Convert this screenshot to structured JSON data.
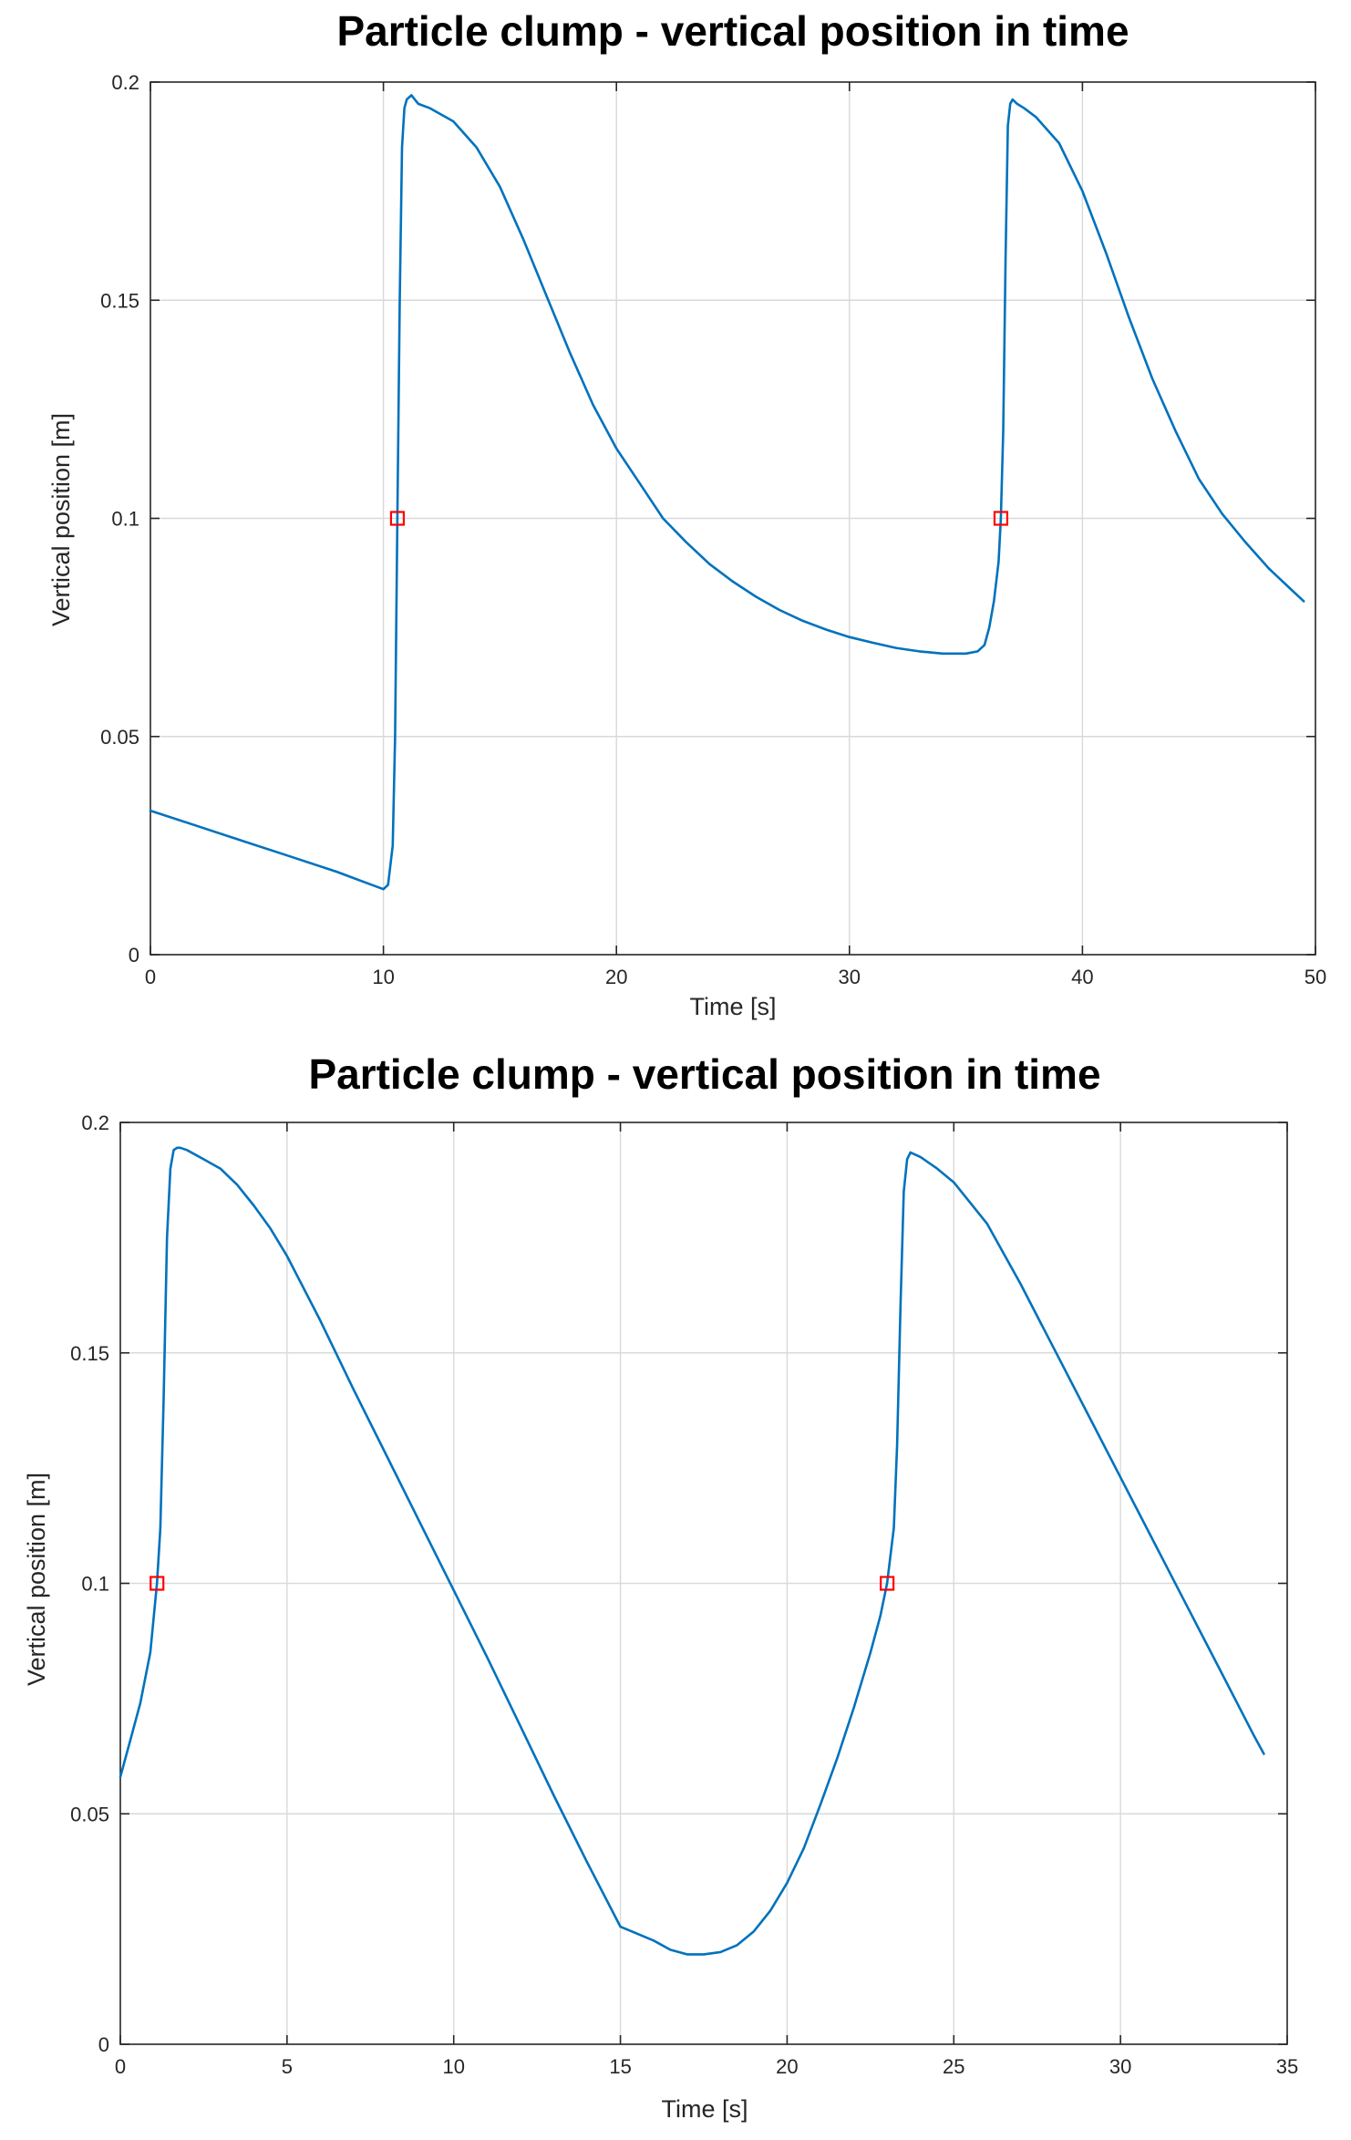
{
  "colors": {
    "line": "#0072BD",
    "marker": "#FF0000",
    "text": "#262626",
    "grid": "#D9D9D9",
    "title": "#000000"
  },
  "chart_data": [
    {
      "type": "line",
      "title": "Particle clump - vertical position in time",
      "xlabel": "Time [s]",
      "ylabel": "Vertical position [m]",
      "xlim": [
        0,
        50
      ],
      "ylim": [
        0,
        0.2
      ],
      "grid": true,
      "xticks": [
        0,
        10,
        20,
        30,
        40,
        50
      ],
      "xtick_labels": [
        "0",
        "10",
        "20",
        "30",
        "40",
        "50"
      ],
      "yticks": [
        0,
        0.05,
        0.1,
        0.15,
        0.2
      ],
      "ytick_labels": [
        "0",
        "0.05",
        "0.1",
        "0.15",
        "0.2"
      ],
      "series": [
        {
          "name": "position",
          "x": [
            0,
            2,
            4,
            6,
            8,
            9,
            10,
            10.2,
            10.4,
            10.5,
            10.6,
            10.7,
            10.8,
            10.9,
            11,
            11.2,
            11.5,
            12,
            13,
            14,
            15,
            16,
            17,
            18,
            19,
            20,
            21,
            22,
            23,
            24,
            25,
            26,
            27,
            28,
            29,
            30,
            31,
            32,
            33,
            34,
            35,
            35.5,
            35.8,
            36,
            36.2,
            36.4,
            36.5,
            36.6,
            36.7,
            36.8,
            36.9,
            37,
            37.2,
            37.5,
            38,
            39,
            40,
            41,
            42,
            43,
            44,
            45,
            46,
            47,
            48,
            49,
            49.5
          ],
          "y": [
            0.033,
            0.0295,
            0.026,
            0.0225,
            0.019,
            0.017,
            0.015,
            0.016,
            0.025,
            0.05,
            0.1,
            0.15,
            0.185,
            0.194,
            0.196,
            0.197,
            0.195,
            0.194,
            0.191,
            0.185,
            0.176,
            0.164,
            0.151,
            0.138,
            0.126,
            0.116,
            0.108,
            0.1,
            0.0945,
            0.0895,
            0.0855,
            0.082,
            0.079,
            0.0765,
            0.0745,
            0.0728,
            0.0715,
            0.0703,
            0.0695,
            0.069,
            0.069,
            0.0695,
            0.071,
            0.075,
            0.081,
            0.09,
            0.1,
            0.12,
            0.16,
            0.19,
            0.195,
            0.196,
            0.195,
            0.194,
            0.192,
            0.186,
            0.175,
            0.161,
            0.146,
            0.132,
            0.12,
            0.109,
            0.101,
            0.0945,
            0.0885,
            0.0835,
            0.081
          ]
        }
      ],
      "markers": {
        "shape": "square",
        "x": [
          10.6,
          36.5
        ],
        "y": [
          0.1,
          0.1
        ]
      }
    },
    {
      "type": "line",
      "title": "Particle clump - vertical position in time",
      "xlabel": "Time [s]",
      "ylabel": "Vertical position [m]",
      "xlim": [
        0,
        35
      ],
      "ylim": [
        0,
        0.2
      ],
      "grid": true,
      "xticks": [
        0,
        5,
        10,
        15,
        20,
        25,
        30,
        35
      ],
      "xtick_labels": [
        "0",
        "5",
        "10",
        "15",
        "20",
        "25",
        "30",
        "35"
      ],
      "yticks": [
        0,
        0.05,
        0.1,
        0.15,
        0.2
      ],
      "ytick_labels": [
        "0",
        "0.05",
        "0.1",
        "0.15",
        "0.2"
      ],
      "series": [
        {
          "name": "position",
          "x": [
            0,
            0.3,
            0.6,
            0.9,
            1.1,
            1.2,
            1.3,
            1.4,
            1.5,
            1.6,
            1.7,
            1.8,
            2,
            2.5,
            3,
            3.5,
            4,
            4.5,
            5,
            6,
            7,
            8,
            9,
            10,
            11,
            12,
            13,
            14,
            15,
            16,
            16.5,
            17,
            17.5,
            18,
            18.5,
            19,
            19.5,
            20,
            20.5,
            21,
            21.5,
            22,
            22.5,
            22.8,
            23,
            23.2,
            23.3,
            23.4,
            23.5,
            23.6,
            23.7,
            24,
            24.5,
            25,
            26,
            27,
            28,
            29,
            30,
            31,
            32,
            33,
            34,
            34.3
          ],
          "y": [
            0.058,
            0.066,
            0.074,
            0.085,
            0.1,
            0.112,
            0.14,
            0.175,
            0.19,
            0.194,
            0.1945,
            0.1945,
            0.194,
            0.192,
            0.19,
            0.1865,
            0.182,
            0.177,
            0.171,
            0.157,
            0.142,
            0.1275,
            0.113,
            0.0985,
            0.084,
            0.069,
            0.054,
            0.0395,
            0.0255,
            0.0225,
            0.0205,
            0.0195,
            0.0195,
            0.02,
            0.0215,
            0.0245,
            0.029,
            0.035,
            0.0425,
            0.052,
            0.062,
            0.073,
            0.085,
            0.093,
            0.1,
            0.112,
            0.13,
            0.16,
            0.185,
            0.192,
            0.1935,
            0.1925,
            0.19,
            0.187,
            0.178,
            0.165,
            0.151,
            0.137,
            0.123,
            0.109,
            0.095,
            0.081,
            0.067,
            0.063
          ]
        }
      ],
      "markers": {
        "shape": "square",
        "x": [
          1.1,
          23.0
        ],
        "y": [
          0.1,
          0.1
        ]
      }
    }
  ]
}
